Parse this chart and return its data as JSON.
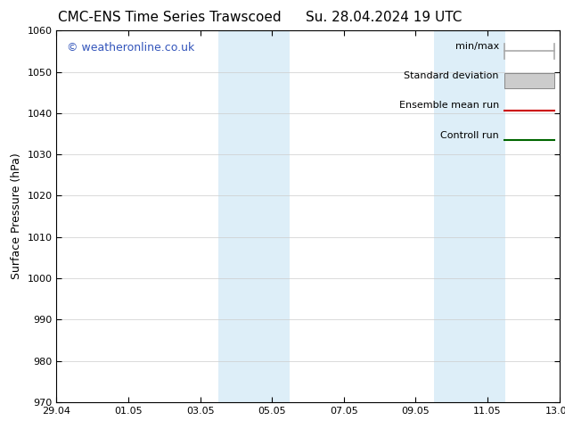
{
  "title": "CMC-ENS Time Series Trawscoed",
  "title2": "Su. 28.04.2024 19 UTC",
  "ylabel": "Surface Pressure (hPa)",
  "ylim": [
    970,
    1060
  ],
  "yticks": [
    970,
    980,
    990,
    1000,
    1010,
    1020,
    1030,
    1040,
    1050,
    1060
  ],
  "xlim_start": 0,
  "xlim_end": 14,
  "xtick_positions": [
    0,
    2,
    4,
    6,
    8,
    10,
    12,
    14
  ],
  "xtick_labels": [
    "29.04",
    "01.05",
    "03.05",
    "05.05",
    "07.05",
    "09.05",
    "11.05",
    "13.05"
  ],
  "shaded_bands": [
    {
      "x_start": 4.5,
      "x_end": 6.5
    },
    {
      "x_start": 10.5,
      "x_end": 12.5
    }
  ],
  "shaded_color": "#ddeef8",
  "watermark_text": "© weatheronline.co.uk",
  "watermark_color": "#3355bb",
  "background_color": "#ffffff",
  "legend_entries": [
    {
      "label": "min/max",
      "color": "#aaaaaa",
      "style": "line_with_caps"
    },
    {
      "label": "Standard deviation",
      "color": "#cccccc",
      "style": "rect"
    },
    {
      "label": "Ensemble mean run",
      "color": "#cc0000",
      "style": "line"
    },
    {
      "label": "Controll run",
      "color": "#006600",
      "style": "line"
    }
  ],
  "grid_color": "#cccccc",
  "tick_color": "#000000",
  "font_size_title": 11,
  "font_size_axis": 9,
  "font_size_ticks": 8,
  "font_size_legend": 8,
  "font_size_watermark": 9
}
